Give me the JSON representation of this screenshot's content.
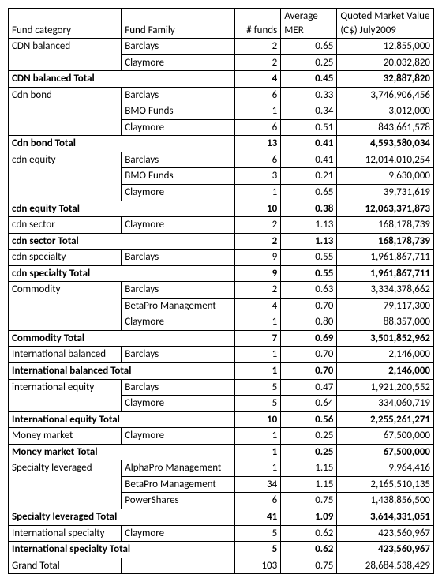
{
  "columns": [
    "Fund category",
    "Fund Family",
    "# funds",
    "Average MER",
    "Quoted Market Value (C$) July2009"
  ],
  "rows": [
    {
      "type": "data",
      "c": [
        "CDN balanced",
        "Barclays",
        "2",
        "0.65",
        "12,855,000"
      ],
      "join": "down"
    },
    {
      "type": "data",
      "c": [
        "",
        "Claymore",
        "2",
        "0.25",
        "20,032,820"
      ],
      "join": "up"
    },
    {
      "type": "total",
      "c": [
        "CDN balanced Total",
        "",
        "4",
        "0.45",
        "32,887,820"
      ]
    },
    {
      "type": "data",
      "c": [
        "Cdn bond",
        "Barclays",
        "6",
        "0.33",
        "3,746,906,456"
      ],
      "join": "down"
    },
    {
      "type": "data",
      "c": [
        "",
        "BMO Funds",
        "1",
        "0.34",
        "3,012,000"
      ],
      "join": "both"
    },
    {
      "type": "data",
      "c": [
        "",
        "Claymore",
        "6",
        "0.51",
        "843,661,578"
      ],
      "join": "up"
    },
    {
      "type": "total",
      "c": [
        "Cdn bond Total",
        "",
        "13",
        "0.41",
        "4,593,580,034"
      ]
    },
    {
      "type": "data",
      "c": [
        "cdn equity",
        "Barclays",
        "6",
        "0.41",
        "12,014,010,254"
      ],
      "join": "down"
    },
    {
      "type": "data",
      "c": [
        "",
        "BMO Funds",
        "3",
        "0.21",
        "9,630,000"
      ],
      "join": "both"
    },
    {
      "type": "data",
      "c": [
        "",
        "Claymore",
        "1",
        "0.65",
        "39,731,619"
      ],
      "join": "up"
    },
    {
      "type": "total",
      "c": [
        "cdn equity Total",
        "",
        "10",
        "0.38",
        "12,063,371,873"
      ]
    },
    {
      "type": "data",
      "c": [
        "cdn sector",
        "Claymore",
        "2",
        "1.13",
        "168,178,739"
      ]
    },
    {
      "type": "total",
      "c": [
        "cdn sector Total",
        "",
        "2",
        "1.13",
        "168,178,739"
      ]
    },
    {
      "type": "data",
      "c": [
        "cdn specialty",
        "Barclays",
        "9",
        "0.55",
        "1,961,867,711"
      ]
    },
    {
      "type": "total",
      "c": [
        "cdn specialty Total",
        "",
        "9",
        "0.55",
        "1,961,867,711"
      ]
    },
    {
      "type": "data",
      "c": [
        "Commodity",
        "Barclays",
        "2",
        "0.63",
        "3,334,378,662"
      ],
      "join": "down"
    },
    {
      "type": "data",
      "c": [
        "",
        "BetaPro Management",
        "4",
        "0.70",
        "79,117,300"
      ],
      "join": "both"
    },
    {
      "type": "data",
      "c": [
        "",
        "Claymore",
        "1",
        "0.80",
        "88,357,000"
      ],
      "join": "up"
    },
    {
      "type": "total",
      "c": [
        "Commodity Total",
        "",
        "7",
        "0.69",
        "3,501,852,962"
      ]
    },
    {
      "type": "data",
      "c": [
        "International balanced",
        "Barclays",
        "1",
        "0.70",
        "2,146,000"
      ]
    },
    {
      "type": "total",
      "c": [
        "International balanced Total",
        "",
        "1",
        "0.70",
        "2,146,000"
      ]
    },
    {
      "type": "data",
      "c": [
        "international equity",
        "Barclays",
        "5",
        "0.47",
        "1,921,200,552"
      ],
      "join": "down"
    },
    {
      "type": "data",
      "c": [
        "",
        "Claymore",
        "5",
        "0.64",
        "334,060,719"
      ],
      "join": "up"
    },
    {
      "type": "total",
      "c": [
        "International equity Total",
        "",
        "10",
        "0.56",
        "2,255,261,271"
      ]
    },
    {
      "type": "data",
      "c": [
        "Money market",
        "Claymore",
        "1",
        "0.25",
        "67,500,000"
      ]
    },
    {
      "type": "total",
      "c": [
        "Money market Total",
        "",
        "1",
        "0.25",
        "67,500,000"
      ]
    },
    {
      "type": "data",
      "c": [
        "Specialty leveraged",
        "AlphaPro Management",
        "1",
        "1.15",
        "9,964,416"
      ],
      "join": "down"
    },
    {
      "type": "data",
      "c": [
        "",
        "BetaPro Management",
        "34",
        "1.15",
        "2,165,510,135"
      ],
      "join": "both"
    },
    {
      "type": "data",
      "c": [
        "",
        "PowerShares",
        "6",
        "0.75",
        "1,438,856,500"
      ],
      "join": "up"
    },
    {
      "type": "total",
      "c": [
        "Specialty leveraged Total",
        "",
        "41",
        "1.09",
        "3,614,331,051"
      ]
    },
    {
      "type": "data",
      "c": [
        "International specialty",
        "Claymore",
        "5",
        "0.62",
        "423,560,967"
      ]
    },
    {
      "type": "total",
      "c": [
        "International specialty Total",
        "",
        "5",
        "0.62",
        "423,560,967"
      ]
    },
    {
      "type": "data",
      "c": [
        "Grand Total",
        "",
        "103",
        "0.75",
        "28,684,538,429"
      ]
    }
  ]
}
